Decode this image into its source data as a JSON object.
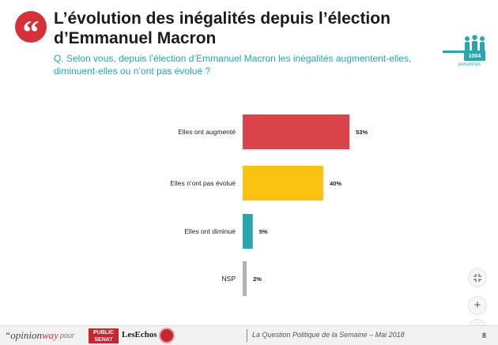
{
  "header": {
    "title": "L’évolution des inégalités depuis l’élection d’Emmanuel Macron",
    "question": "Q. Selon vous, depuis l’élection d’Emmanuel Macron les inégalités augmentent-elles, diminuent-elles ou n’ont pas évolué ?",
    "quote_mark": "“",
    "sample_size": "1004",
    "sample_label": "personnes"
  },
  "chart_data": {
    "type": "bar",
    "orientation": "horizontal",
    "categories": [
      "Elles ont augmenté",
      "Elles n’ont pas évolué",
      "Elles ont diminué",
      "NSP"
    ],
    "values": [
      53,
      40,
      5,
      2
    ],
    "value_labels": [
      "53%",
      "40%",
      "5%",
      "2%"
    ],
    "colors": [
      "#d9434a",
      "#fbc20f",
      "#27a6b0",
      "#b3b3b3"
    ],
    "grid": false,
    "legend": "none",
    "xlim": [
      0,
      100
    ]
  },
  "controls": {
    "fit_icon": "fit-screen-icon",
    "zoom_in_label": "+",
    "zoom_out_label": "−"
  },
  "footer": {
    "brand_prefix": "“opinion",
    "brand_suffix": "way",
    "pour": "pour",
    "partner1_line1": "PUBLIC",
    "partner1_line2": "SENAT",
    "partner2": "LesEchos",
    "source": "La Question Politique de la Semaine – Mai 2018",
    "page": "8"
  }
}
